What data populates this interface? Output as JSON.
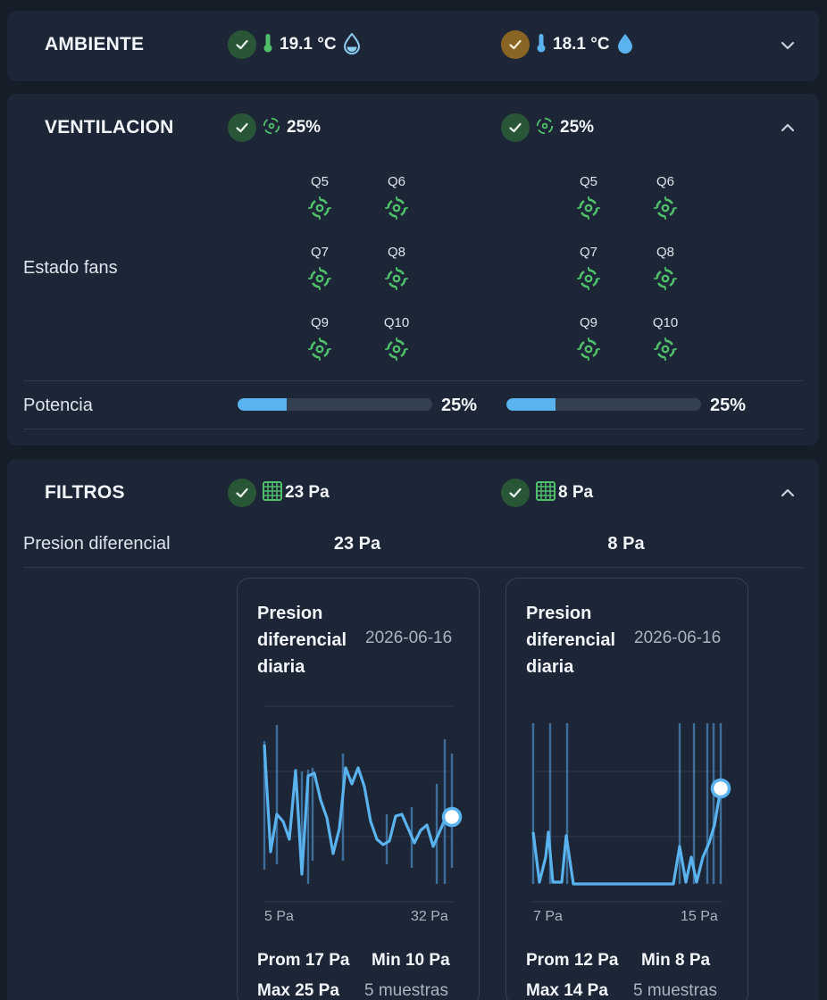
{
  "ambiente": {
    "title": "AMBIENTE",
    "zones": [
      {
        "status": "ok",
        "temp": "19.1 °C",
        "temp_icon_color": "#4fbf6a"
      },
      {
        "status": "warn",
        "temp": "18.1 °C",
        "temp_icon_color": "#5ab3ee"
      }
    ],
    "expanded": false
  },
  "ventilacion": {
    "title": "VENTILACION",
    "zones": [
      {
        "status": "ok",
        "speed": "25%"
      },
      {
        "status": "ok",
        "speed": "25%"
      }
    ],
    "estado_label": "Estado fans",
    "fans": [
      "Q5",
      "Q6",
      "Q7",
      "Q8",
      "Q9",
      "Q10"
    ],
    "potencia_label": "Potencia",
    "potencia": [
      {
        "label": "25%",
        "fraction": 0.25
      },
      {
        "label": "25%",
        "fraction": 0.25
      }
    ],
    "expanded": true
  },
  "filtros": {
    "title": "FILTROS",
    "zones": [
      {
        "status": "ok",
        "pressure": "23 Pa"
      },
      {
        "status": "ok",
        "pressure": "8 Pa"
      }
    ],
    "pd_label": "Presion diferencial",
    "pd_values": [
      "23 Pa",
      "8 Pa"
    ],
    "expanded": true,
    "charts": [
      {
        "title": "Presion diferencial diaria",
        "date": "2026-06-16",
        "min_label": "5 Pa",
        "max_label": "32 Pa",
        "stats": {
          "prom": "Prom 17 Pa",
          "min": "Min 10 Pa",
          "max": "Max 25 Pa",
          "samples": "5 muestras"
        }
      },
      {
        "title": "Presion diferencial diaria",
        "date": "2026-06-16",
        "min_label": "7 Pa",
        "max_label": "15 Pa",
        "stats": {
          "prom": "Prom 12 Pa",
          "min": "Min 8 Pa",
          "max": "Max 14 Pa",
          "samples": "5 muestras"
        }
      }
    ]
  },
  "colors": {
    "ok": "#2a5638",
    "warn": "#8a6422",
    "accent": "#5ab3ee",
    "fan_green": "#4fbf6a"
  }
}
